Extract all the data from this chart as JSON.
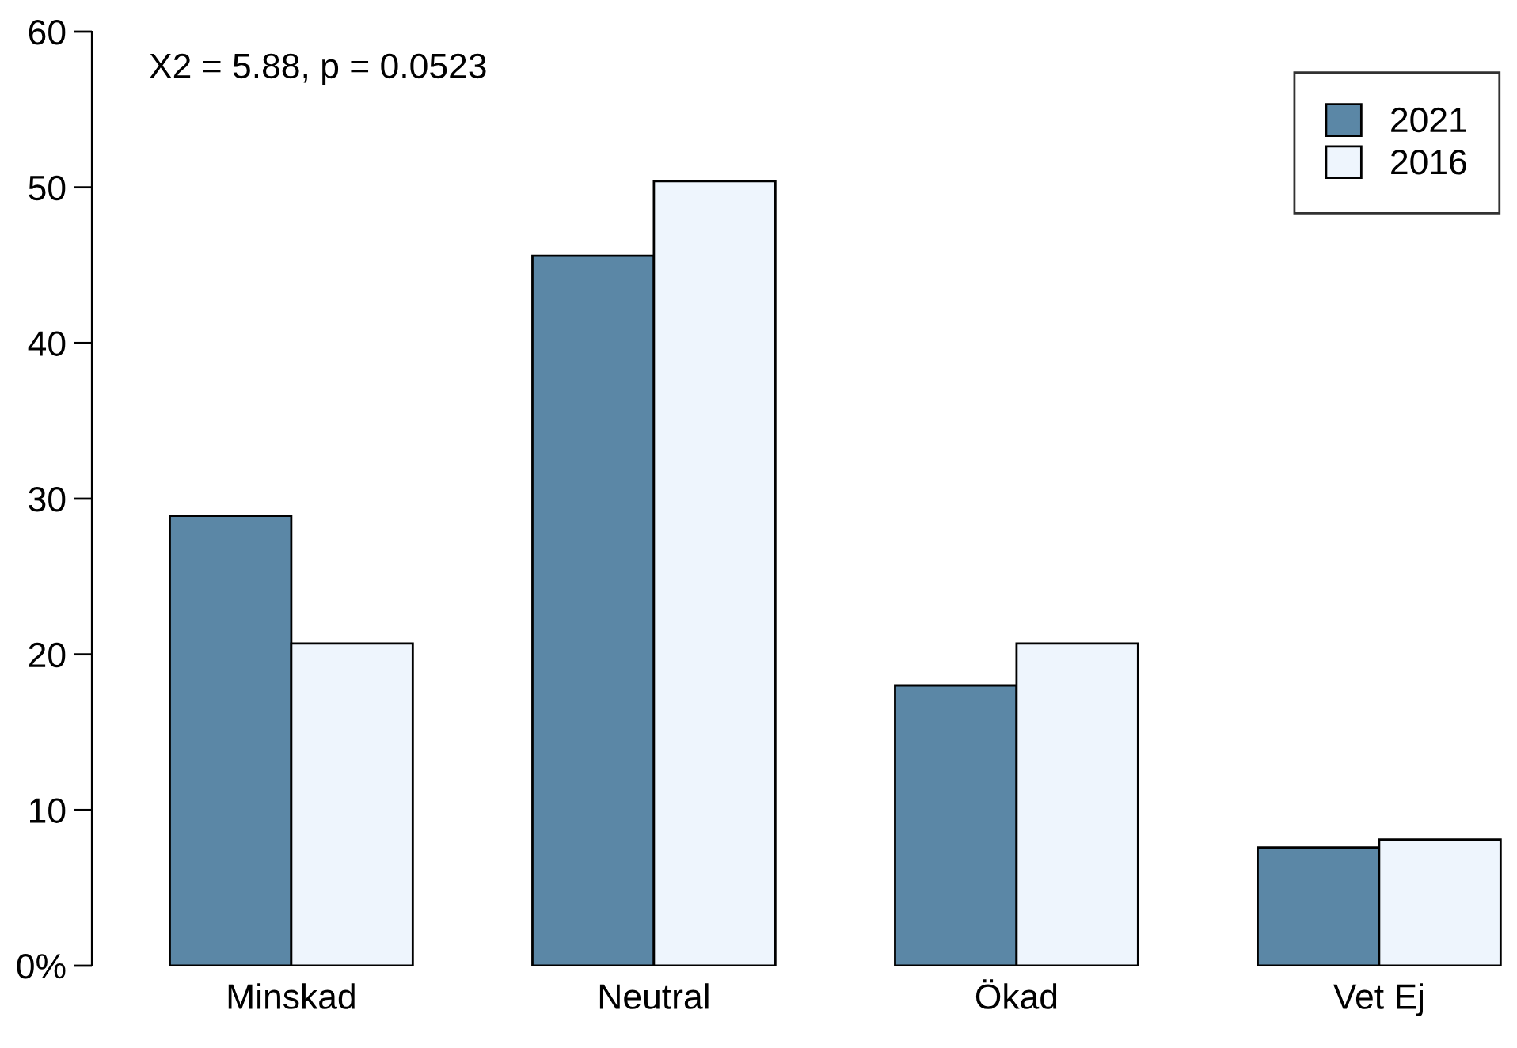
{
  "chart_data": {
    "type": "bar",
    "categories": [
      "Minskad",
      "Neutral",
      "Ökad",
      "Vet Ej"
    ],
    "series": [
      {
        "name": "2021",
        "color": "#5b87a6",
        "values": [
          28.9,
          45.6,
          18.0,
          7.6
        ]
      },
      {
        "name": "2016",
        "color": "#eef5fd",
        "values": [
          20.7,
          50.4,
          20.7,
          8.1
        ]
      }
    ],
    "ylim": [
      0,
      60
    ],
    "yticks": [
      {
        "value": 0,
        "label": "0%"
      },
      10,
      20,
      30,
      40,
      50,
      60
    ],
    "annotations": [
      "X2 = 5.88, p = 0.0523"
    ],
    "legend": "top right",
    "grid": false
  }
}
